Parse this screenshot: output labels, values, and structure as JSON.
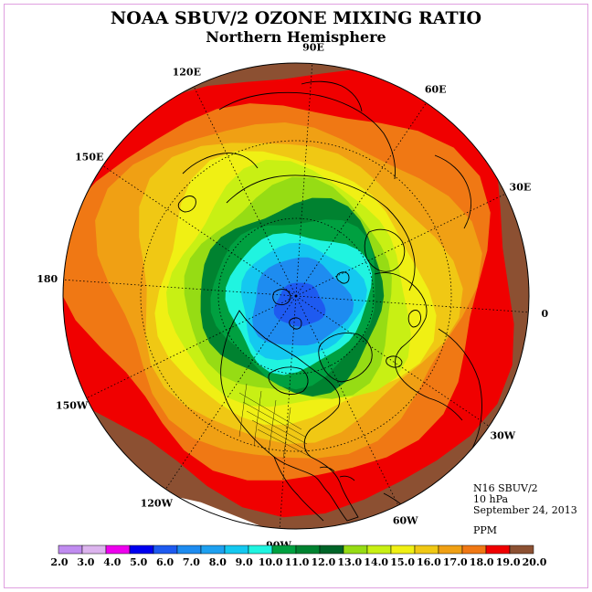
{
  "title": "NOAA SBUV/2 OZONE MIXING RATIO",
  "subtitle": "Northern Hemisphere",
  "projection": "polar stereographic, north pole centered",
  "longitude_labels": [
    {
      "text": "90E",
      "lon": 90
    },
    {
      "text": "60E",
      "lon": 60
    },
    {
      "text": "30E",
      "lon": 30
    },
    {
      "text": "0",
      "lon": 0
    },
    {
      "text": "30W",
      "lon": -30
    },
    {
      "text": "60W",
      "lon": -60
    },
    {
      "text": "90W",
      "lon": -90
    },
    {
      "text": "120W",
      "lon": -120
    },
    {
      "text": "150W",
      "lon": -150
    },
    {
      "text": "180",
      "lon": 180
    },
    {
      "text": "150E",
      "lon": 150
    },
    {
      "text": "120E",
      "lon": 120
    }
  ],
  "info": {
    "instrument": "N16 SBUV/2",
    "level": "10 hPa",
    "date": "September 24, 2013",
    "units": "PPM"
  },
  "colorbar": {
    "boundaries": [
      "2.0",
      "3.0",
      "4.0",
      "5.0",
      "6.0",
      "7.0",
      "8.0",
      "9.0",
      "10.0",
      "11.0",
      "12.0",
      "13.0",
      "14.0",
      "15.0",
      "16.0",
      "17.0",
      "18.0",
      "19.0",
      "20.0"
    ],
    "colors": [
      "#c08cf0",
      "#dcb4ee",
      "#ee00ee",
      "#0000f0",
      "#1e5af0",
      "#1e8cf0",
      "#1ea0f0",
      "#14c8f0",
      "#20f4e0",
      "#00a040",
      "#008230",
      "#006428",
      "#96dc14",
      "#c8f014",
      "#f0f014",
      "#f0c814",
      "#f0a014",
      "#f07814",
      "#f00000",
      "#8c5032"
    ]
  },
  "field": {
    "description": "concentric ozone mixing ratio bands, minimum near pole, increasing toward equator",
    "bands_ppm": [
      {
        "min": 6.0,
        "max": 7.0,
        "color": "#1e5af0"
      },
      {
        "min": 7.0,
        "max": 8.0,
        "color": "#1e8cf0"
      },
      {
        "min": 8.0,
        "max": 9.0,
        "color": "#14c8f0"
      },
      {
        "min": 9.0,
        "max": 10.0,
        "color": "#20f4e0"
      },
      {
        "min": 10.0,
        "max": 11.0,
        "color": "#00a040"
      },
      {
        "min": 11.0,
        "max": 12.0,
        "color": "#008230"
      },
      {
        "min": 12.0,
        "max": 13.0,
        "color": "#96dc14"
      },
      {
        "min": 13.0,
        "max": 14.0,
        "color": "#c8f014"
      },
      {
        "min": 14.0,
        "max": 15.0,
        "color": "#f0f014"
      },
      {
        "min": 15.0,
        "max": 16.0,
        "color": "#f0c814"
      },
      {
        "min": 16.0,
        "max": 17.0,
        "color": "#f0a014"
      },
      {
        "min": 17.0,
        "max": 18.0,
        "color": "#f07814"
      },
      {
        "min": 18.0,
        "max": 19.0,
        "color": "#f00000"
      },
      {
        "min": 19.0,
        "max": 20.0,
        "color": "#8c5032"
      }
    ]
  },
  "colors": {
    "frame_border": "#e0a0e0",
    "map_outline": "#000000",
    "grid": "#000000"
  }
}
